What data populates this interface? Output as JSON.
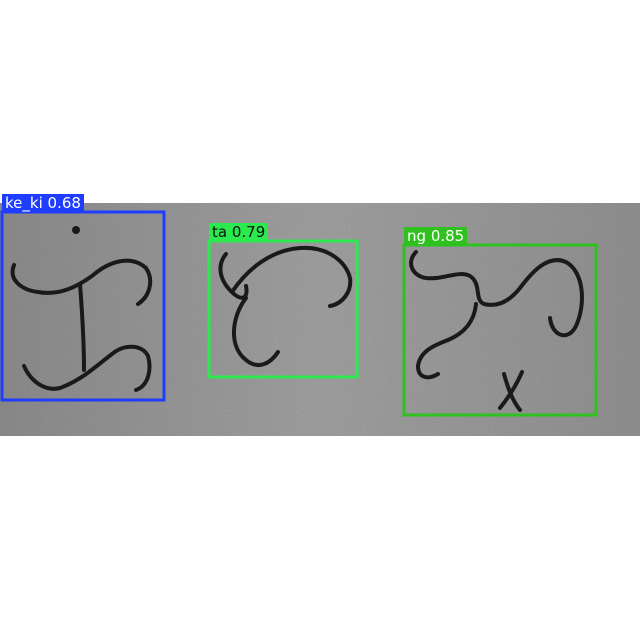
{
  "detections": [
    {
      "class_name": "ke_ki",
      "confidence": "0.68",
      "color": "#1f3dff",
      "text_color": "#ffffff"
    },
    {
      "class_name": "ta",
      "confidence": "0.79",
      "color": "#2bea4e",
      "text_color": "#111111"
    },
    {
      "class_name": "ng",
      "confidence": "0.85",
      "color": "#2fc21f",
      "text_color": "#ffffff"
    }
  ],
  "colors": {
    "background": "#ffffff",
    "paper": "#9b9b9b",
    "ink": "#1a1a1a"
  }
}
